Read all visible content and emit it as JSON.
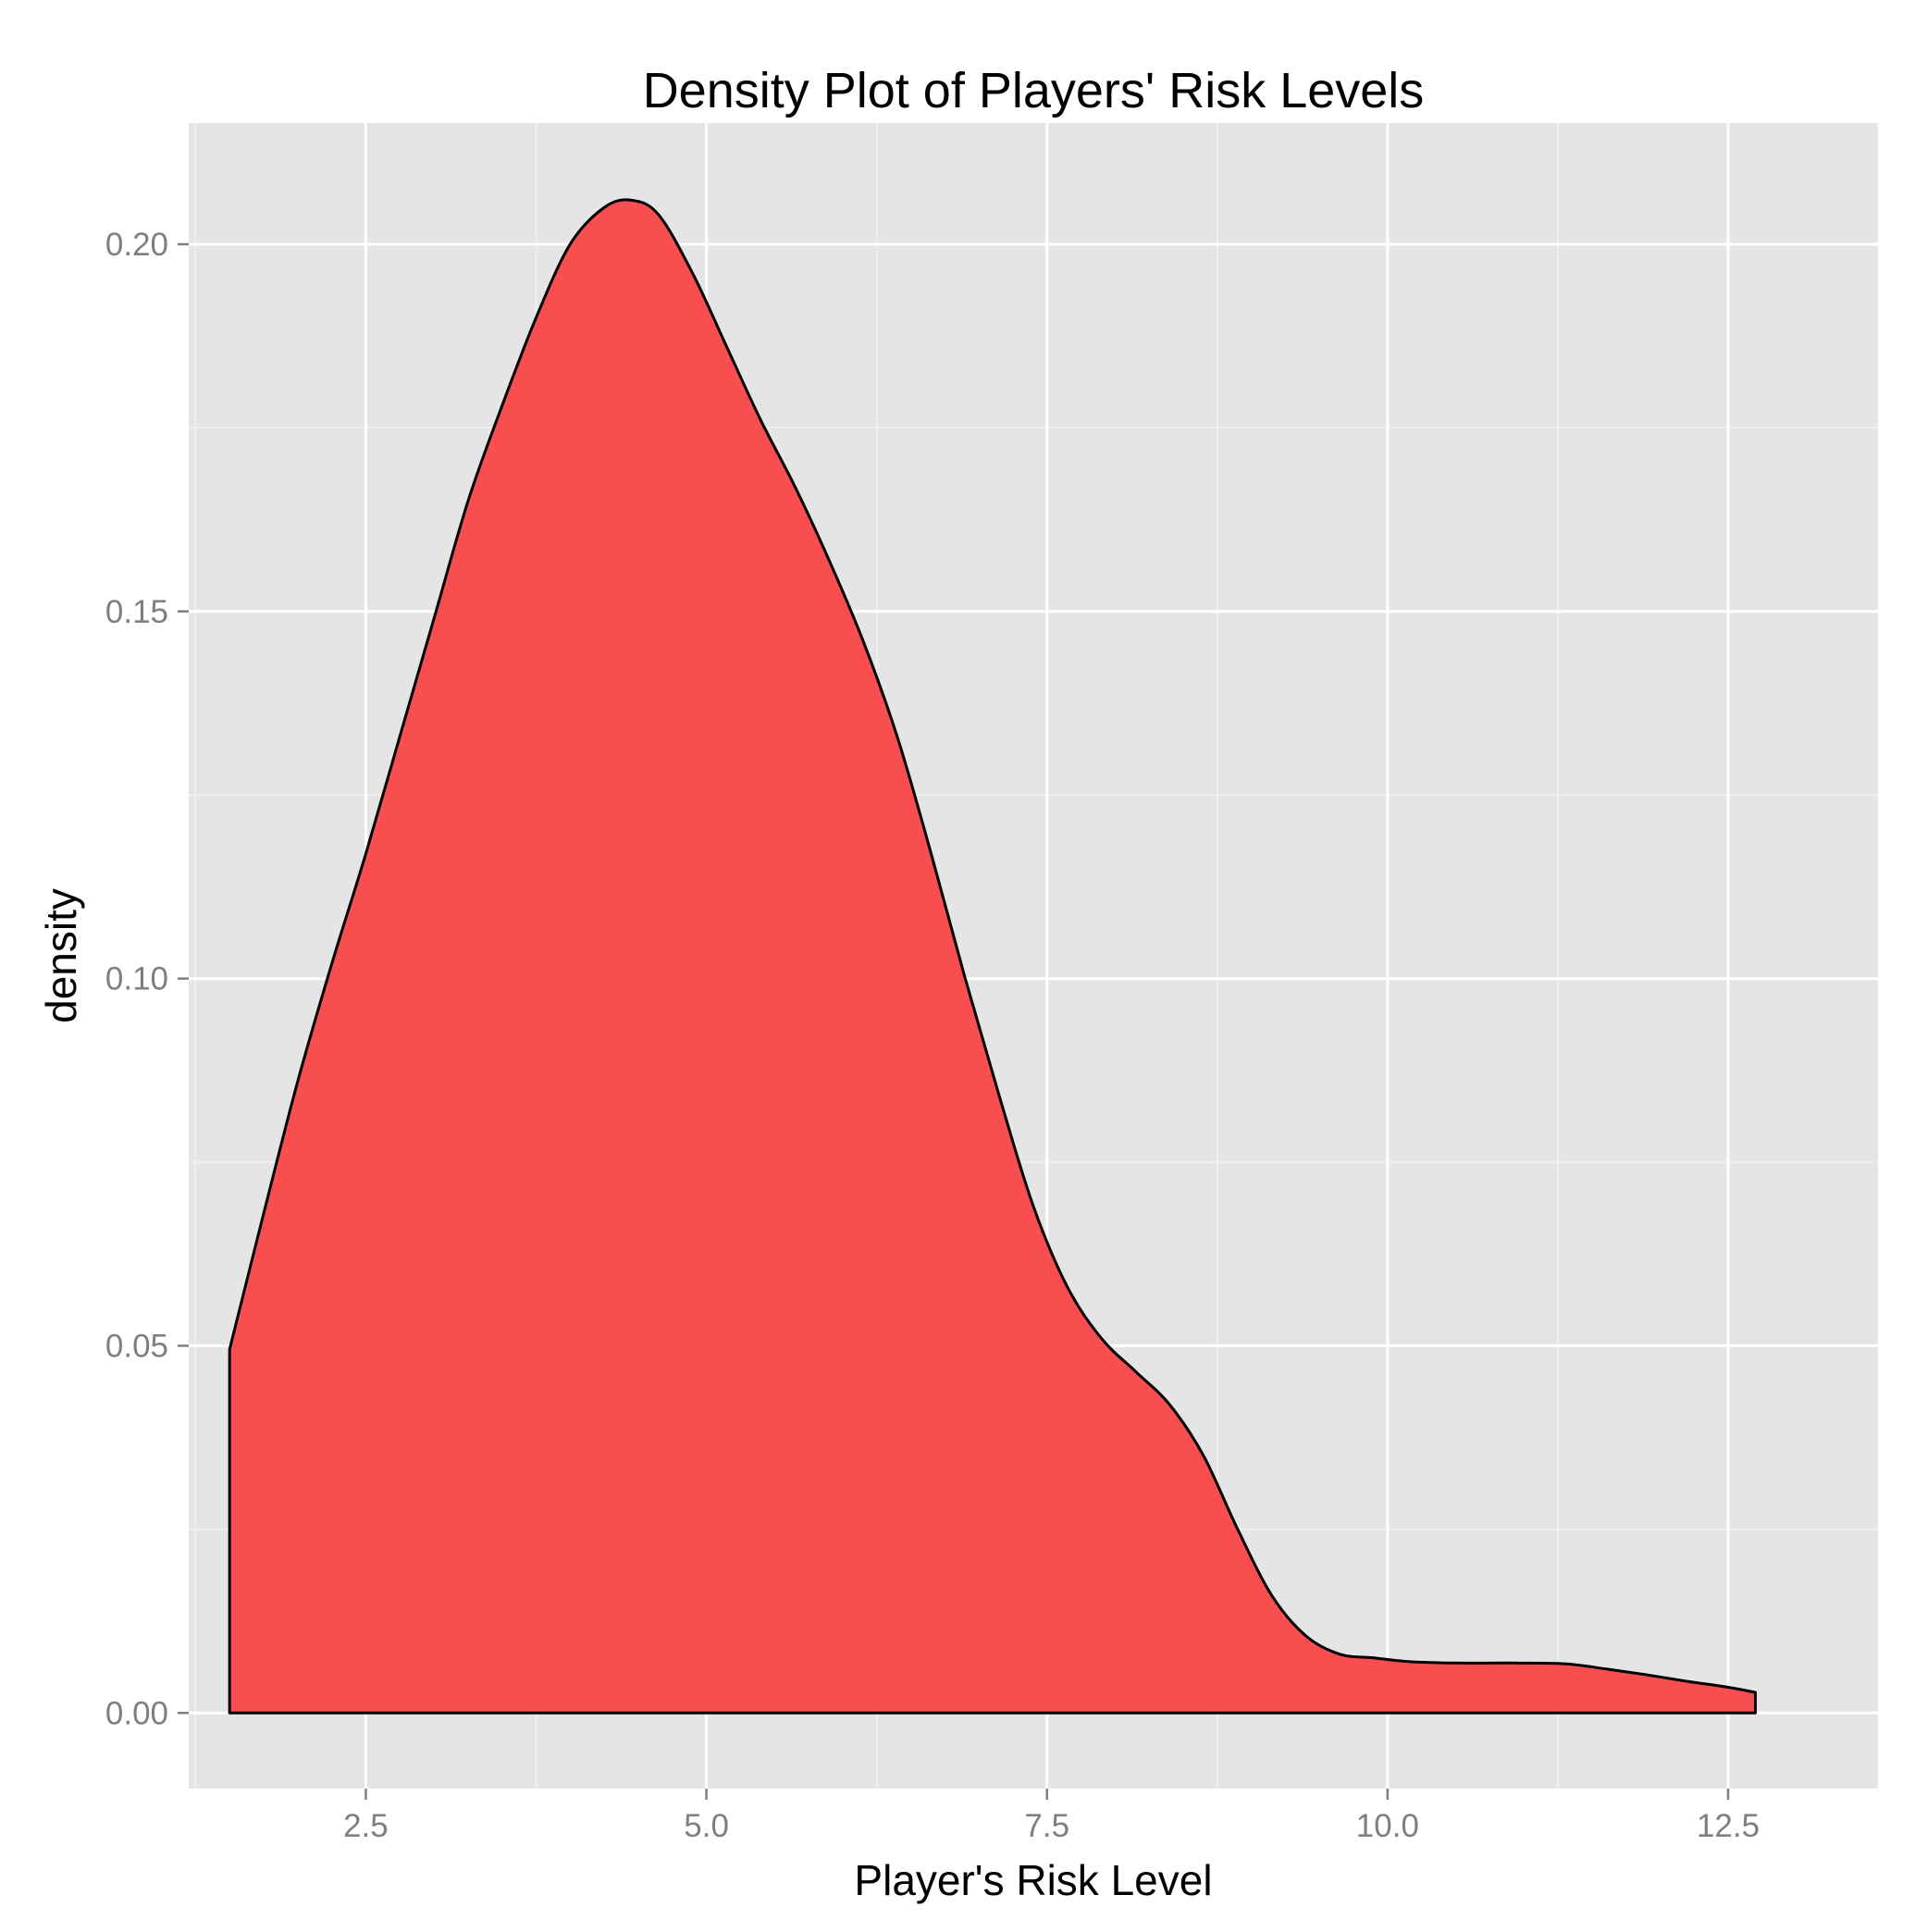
{
  "chart_data": {
    "type": "area",
    "title": "Density Plot of Players' Risk Levels",
    "xlabel": "Player's Risk Level",
    "ylabel": "density",
    "xlim": [
      1.2,
      13.6
    ],
    "ylim": [
      -0.0103,
      0.2165
    ],
    "x_ticks": [
      2.5,
      5.0,
      7.5,
      10.0,
      12.5
    ],
    "x_tick_labels": [
      "2.5",
      "5.0",
      "7.5",
      "10.0",
      "12.5"
    ],
    "y_ticks": [
      0.0,
      0.05,
      0.1,
      0.15,
      0.2
    ],
    "y_tick_labels": [
      "0.00",
      "0.05",
      "0.10",
      "0.15",
      "0.20"
    ],
    "grid": true,
    "fill_color": "#F8484A",
    "panel_color": "#E5E5E5",
    "series": [
      {
        "x": [
          1.5,
          1.75,
          2.0,
          2.25,
          2.5,
          2.75,
          3.0,
          3.25,
          3.5,
          3.75,
          4.0,
          4.25,
          4.45,
          4.65,
          4.9,
          5.15,
          5.4,
          5.65,
          5.9,
          6.15,
          6.4,
          6.65,
          6.9,
          7.15,
          7.4,
          7.65,
          7.9,
          8.15,
          8.4,
          8.65,
          8.9,
          9.15,
          9.4,
          9.65,
          9.9,
          10.15,
          10.5,
          10.9,
          11.3,
          11.6,
          11.9,
          12.2,
          12.5,
          12.7
        ],
        "y": [
          0.0495,
          0.068,
          0.086,
          0.102,
          0.117,
          0.133,
          0.149,
          0.165,
          0.178,
          0.19,
          0.2,
          0.205,
          0.206,
          0.204,
          0.196,
          0.186,
          0.176,
          0.167,
          0.157,
          0.146,
          0.133,
          0.117,
          0.1,
          0.084,
          0.069,
          0.058,
          0.051,
          0.0465,
          0.042,
          0.035,
          0.025,
          0.016,
          0.0105,
          0.008,
          0.0075,
          0.007,
          0.0068,
          0.0068,
          0.0067,
          0.006,
          0.0052,
          0.0043,
          0.0035,
          0.0028
        ]
      }
    ]
  }
}
